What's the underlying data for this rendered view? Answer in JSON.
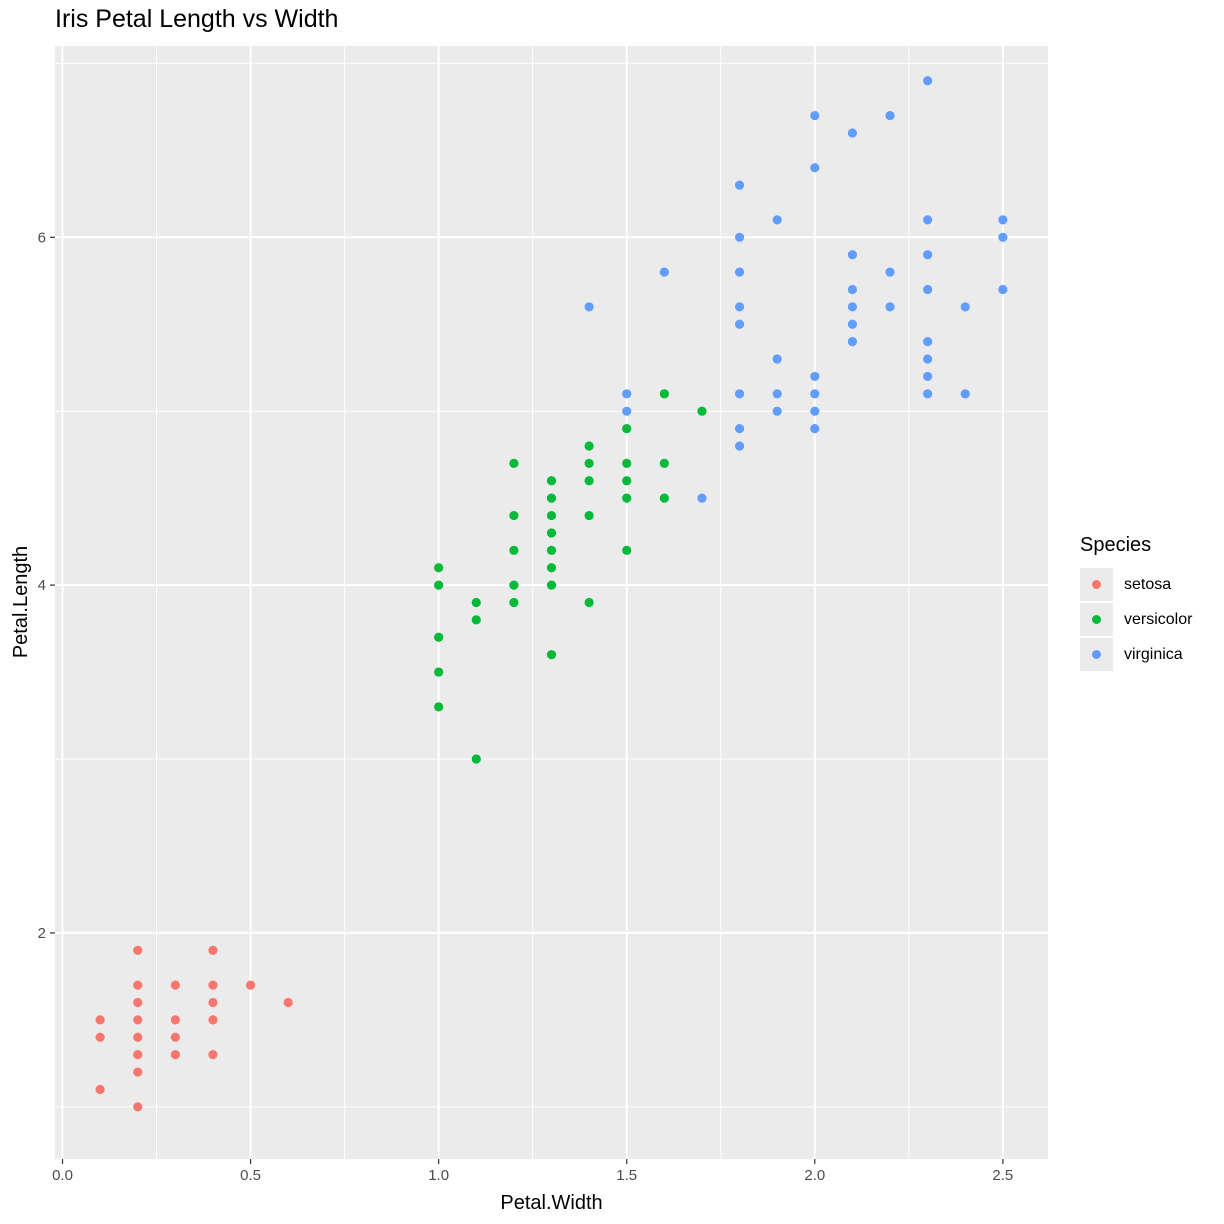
{
  "chart_data": {
    "type": "scatter",
    "title": "Iris Petal Length vs Width",
    "xlabel": "Petal.Width",
    "ylabel": "Petal.Length",
    "xlim": [
      -0.02,
      2.62
    ],
    "ylim": [
      0.7,
      7.1
    ],
    "x_ticks": [
      0.0,
      0.5,
      1.0,
      1.5,
      2.0,
      2.5
    ],
    "x_tick_labels": [
      "0.0",
      "0.5",
      "1.0",
      "1.5",
      "2.0",
      "2.5"
    ],
    "y_ticks": [
      2,
      4,
      6
    ],
    "y_tick_labels": [
      "2",
      "4",
      "6"
    ],
    "grid": true,
    "legend": {
      "title": "Species",
      "position": "right"
    },
    "series": [
      {
        "name": "setosa",
        "color": "#F8766D",
        "points": [
          [
            0.1,
            1.5
          ],
          [
            0.1,
            1.4
          ],
          [
            0.1,
            1.1
          ],
          [
            0.2,
            1.9
          ],
          [
            0.2,
            1.7
          ],
          [
            0.2,
            1.6
          ],
          [
            0.2,
            1.5
          ],
          [
            0.2,
            1.4
          ],
          [
            0.2,
            1.3
          ],
          [
            0.2,
            1.2
          ],
          [
            0.2,
            1.0
          ],
          [
            0.3,
            1.7
          ],
          [
            0.3,
            1.5
          ],
          [
            0.3,
            1.4
          ],
          [
            0.3,
            1.3
          ],
          [
            0.4,
            1.9
          ],
          [
            0.4,
            1.7
          ],
          [
            0.4,
            1.6
          ],
          [
            0.4,
            1.5
          ],
          [
            0.4,
            1.3
          ],
          [
            0.5,
            1.7
          ],
          [
            0.6,
            1.6
          ]
        ]
      },
      {
        "name": "versicolor",
        "color": "#00BA38",
        "points": [
          [
            1.0,
            4.1
          ],
          [
            1.0,
            4.0
          ],
          [
            1.0,
            3.7
          ],
          [
            1.0,
            3.5
          ],
          [
            1.0,
            3.3
          ],
          [
            1.1,
            3.9
          ],
          [
            1.1,
            3.8
          ],
          [
            1.1,
            3.0
          ],
          [
            1.2,
            4.7
          ],
          [
            1.2,
            4.4
          ],
          [
            1.2,
            4.2
          ],
          [
            1.2,
            4.0
          ],
          [
            1.2,
            3.9
          ],
          [
            1.3,
            4.6
          ],
          [
            1.3,
            4.5
          ],
          [
            1.3,
            4.4
          ],
          [
            1.3,
            4.3
          ],
          [
            1.3,
            4.2
          ],
          [
            1.3,
            4.1
          ],
          [
            1.3,
            4.0
          ],
          [
            1.3,
            3.6
          ],
          [
            1.4,
            4.8
          ],
          [
            1.4,
            4.7
          ],
          [
            1.4,
            4.6
          ],
          [
            1.4,
            4.4
          ],
          [
            1.4,
            3.9
          ],
          [
            1.5,
            4.9
          ],
          [
            1.5,
            4.7
          ],
          [
            1.5,
            4.6
          ],
          [
            1.5,
            4.5
          ],
          [
            1.5,
            4.2
          ],
          [
            1.6,
            5.1
          ],
          [
            1.6,
            4.7
          ],
          [
            1.6,
            4.5
          ],
          [
            1.7,
            5.0
          ]
        ]
      },
      {
        "name": "virginica",
        "color": "#619CFF",
        "points": [
          [
            1.4,
            5.6
          ],
          [
            1.5,
            5.1
          ],
          [
            1.5,
            5.0
          ],
          [
            1.6,
            5.8
          ],
          [
            1.7,
            4.5
          ],
          [
            1.8,
            6.3
          ],
          [
            1.8,
            6.0
          ],
          [
            1.8,
            5.8
          ],
          [
            1.8,
            5.6
          ],
          [
            1.8,
            5.5
          ],
          [
            1.8,
            5.1
          ],
          [
            1.8,
            4.9
          ],
          [
            1.8,
            4.8
          ],
          [
            1.9,
            6.1
          ],
          [
            1.9,
            5.3
          ],
          [
            1.9,
            5.1
          ],
          [
            1.9,
            5.0
          ],
          [
            2.0,
            6.7
          ],
          [
            2.0,
            6.4
          ],
          [
            2.0,
            5.2
          ],
          [
            2.0,
            5.1
          ],
          [
            2.0,
            5.0
          ],
          [
            2.0,
            4.9
          ],
          [
            2.1,
            6.6
          ],
          [
            2.1,
            5.9
          ],
          [
            2.1,
            5.7
          ],
          [
            2.1,
            5.6
          ],
          [
            2.1,
            5.5
          ],
          [
            2.1,
            5.4
          ],
          [
            2.2,
            6.7
          ],
          [
            2.2,
            5.8
          ],
          [
            2.2,
            5.6
          ],
          [
            2.3,
            6.9
          ],
          [
            2.3,
            6.1
          ],
          [
            2.3,
            5.9
          ],
          [
            2.3,
            5.7
          ],
          [
            2.3,
            5.4
          ],
          [
            2.3,
            5.3
          ],
          [
            2.3,
            5.2
          ],
          [
            2.3,
            5.1
          ],
          [
            2.4,
            5.6
          ],
          [
            2.4,
            5.1
          ],
          [
            2.5,
            6.1
          ],
          [
            2.5,
            6.0
          ],
          [
            2.5,
            5.7
          ]
        ]
      }
    ]
  }
}
